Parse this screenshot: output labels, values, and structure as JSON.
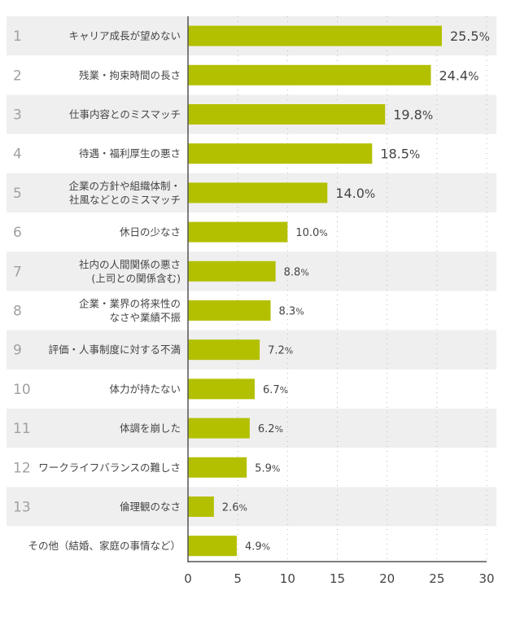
{
  "chart_data": {
    "type": "bar",
    "orientation": "horizontal",
    "ranks": [
      "1",
      "2",
      "3",
      "4",
      "5",
      "6",
      "7",
      "8",
      "9",
      "10",
      "11",
      "12",
      "13",
      ""
    ],
    "categories": [
      [
        "キャリア成長が望めない"
      ],
      [
        "残業・拘束時間の長さ"
      ],
      [
        "仕事内容とのミスマッチ"
      ],
      [
        "待遇・福利厚生の悪さ"
      ],
      [
        "企業の方針や組織体制・",
        "社風などとのミスマッチ"
      ],
      [
        "休日の少なさ"
      ],
      [
        "社内の人間関係の悪さ",
        "(上司との関係含む)"
      ],
      [
        "企業・業界の将来性の",
        "なさや業績不振"
      ],
      [
        "評価・人事制度に対する不満"
      ],
      [
        "体力が持たない"
      ],
      [
        "体調を崩した"
      ],
      [
        "ワークライフバランスの難しさ"
      ],
      [
        "倫理観のなさ"
      ],
      [
        "その他（結婚、家庭の事情など）"
      ]
    ],
    "values": [
      25.5,
      24.4,
      19.8,
      18.5,
      14.0,
      10.0,
      8.8,
      8.3,
      7.2,
      6.7,
      6.2,
      5.9,
      2.6,
      4.9
    ],
    "value_labels": [
      "25.5",
      "24.4",
      "19.8",
      "18.5",
      "14.0",
      "10.0",
      "8.8",
      "8.3",
      "7.2",
      "6.7",
      "6.2",
      "5.9",
      "2.6",
      "4.9"
    ],
    "unit": "%",
    "xlim": [
      0,
      30
    ],
    "xticks": [
      "0",
      "5",
      "10",
      "15",
      "20",
      "25",
      "30"
    ],
    "grid": "vertical dotted",
    "title": "",
    "xlabel": "",
    "ylabel": "",
    "colors": {
      "bar": "#b3c000",
      "band": "#efefef",
      "axis": "#555555"
    }
  }
}
